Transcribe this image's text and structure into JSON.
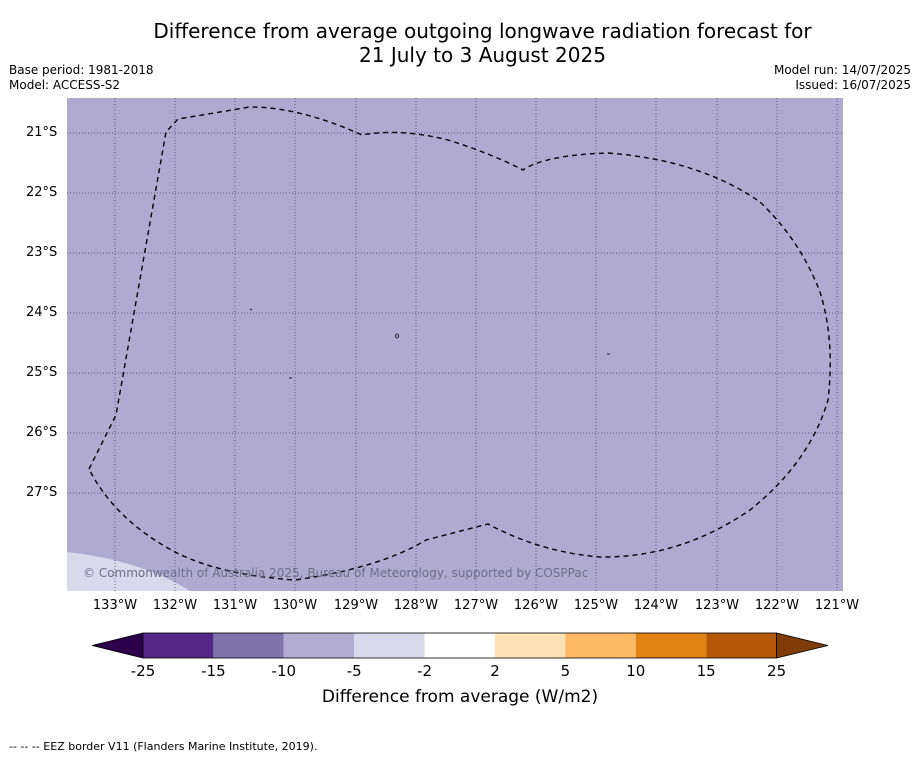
{
  "title_line1": "Difference from average outgoing longwave radiation forecast for",
  "title_line2": "21 July to 3 August 2025",
  "meta_left": {
    "base_period": "Base period: 1981-2018",
    "model": "Model: ACCESS-S2"
  },
  "meta_right": {
    "model_run": "Model run: 14/07/2025",
    "issued": "Issued: 16/07/2025"
  },
  "map": {
    "latitude_labels": [
      "21°S",
      "22°S",
      "23°S",
      "24°S",
      "25°S",
      "26°S",
      "27°S"
    ],
    "longitude_labels": [
      "133°W",
      "132°W",
      "131°W",
      "130°W",
      "129°W",
      "128°W",
      "127°W",
      "126°W",
      "125°W",
      "124°W",
      "123°W",
      "122°W",
      "121°W"
    ],
    "fill_color": "#b0aad1",
    "corner_fill_color": "#d9d9ec",
    "copyright": "© Commonwealth of Australia 2025, Bureau of Meteorology, supported by COSPPac"
  },
  "colorbar": {
    "tick_labels": [
      "-25",
      "-15",
      "-10",
      "-5",
      "-2",
      "2",
      "5",
      "10",
      "15",
      "25"
    ],
    "colors": [
      "#542788",
      "#8073ac",
      "#b2abd2",
      "#d8daeb",
      "#ffffff",
      "#fee0b6",
      "#fdb863",
      "#e08214",
      "#b35806"
    ],
    "under_color": "#2d004b",
    "over_color": "#7f3b08",
    "title": "Difference from average (W/m2)"
  },
  "footer": "--  --  -- EEZ border V11 (Flanders Marine Institute, 2019)."
}
